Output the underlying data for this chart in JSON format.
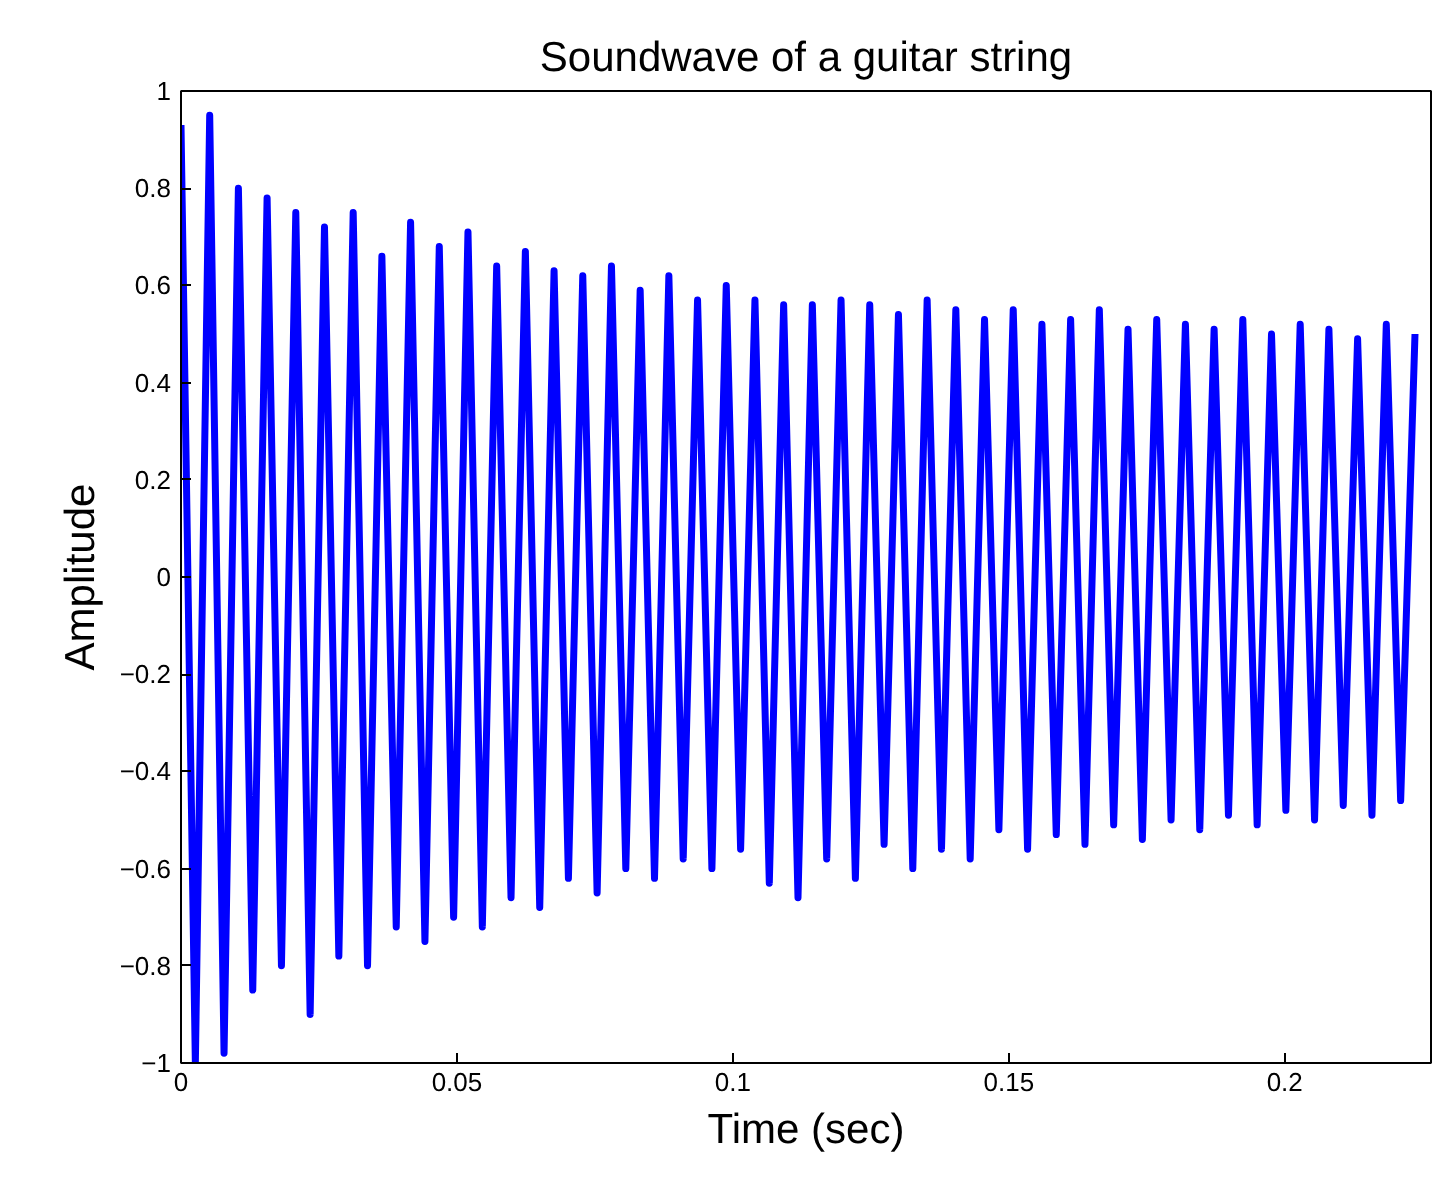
{
  "chart_data": {
    "type": "line",
    "title": "Soundwave of a guitar string",
    "xlabel": "Time (sec)",
    "ylabel": "Amplitude",
    "x": [
      0.0,
      0.0026,
      0.0052,
      0.0078,
      0.0104,
      0.013,
      0.0156,
      0.0182,
      0.0208,
      0.0234,
      0.026,
      0.0286,
      0.0312,
      0.0338,
      0.0364,
      0.039,
      0.0416,
      0.0442,
      0.0468,
      0.0494,
      0.052,
      0.0546,
      0.0572,
      0.0598,
      0.0624,
      0.065,
      0.0676,
      0.0702,
      0.0728,
      0.0754,
      0.078,
      0.0806,
      0.0832,
      0.0858,
      0.0884,
      0.091,
      0.0936,
      0.0962,
      0.0988,
      0.1014,
      0.104,
      0.1066,
      0.1092,
      0.1118,
      0.1144,
      0.117,
      0.1196,
      0.1222,
      0.1248,
      0.1274,
      0.13,
      0.1326,
      0.1352,
      0.1378,
      0.1404,
      0.143,
      0.1456,
      0.1482,
      0.1508,
      0.1534,
      0.156,
      0.1586,
      0.1612,
      0.1638,
      0.1664,
      0.169,
      0.1716,
      0.1742,
      0.1768,
      0.1794,
      0.182,
      0.1846,
      0.1872,
      0.1898,
      0.1924,
      0.195,
      0.1976,
      0.2002,
      0.2028,
      0.2054,
      0.208,
      0.2106,
      0.2132,
      0.2158,
      0.2184,
      0.221,
      0.2236
    ],
    "series": [
      {
        "color": "#0000ff",
        "values": [
          0.93,
          -1.0,
          0.95,
          -0.98,
          0.8,
          -0.85,
          0.78,
          -0.8,
          0.75,
          -0.9,
          0.72,
          -0.78,
          0.75,
          -0.8,
          0.66,
          -0.72,
          0.73,
          -0.75,
          0.68,
          -0.7,
          0.71,
          -0.72,
          0.64,
          -0.66,
          0.67,
          -0.68,
          0.63,
          -0.62,
          0.62,
          -0.65,
          0.64,
          -0.6,
          0.59,
          -0.62,
          0.62,
          -0.58,
          0.57,
          -0.6,
          0.6,
          -0.56,
          0.57,
          -0.63,
          0.56,
          -0.66,
          0.56,
          -0.58,
          0.57,
          -0.62,
          0.56,
          -0.55,
          0.54,
          -0.6,
          0.57,
          -0.56,
          0.55,
          -0.58,
          0.53,
          -0.52,
          0.55,
          -0.56,
          0.52,
          -0.53,
          0.53,
          -0.55,
          0.55,
          -0.51,
          0.51,
          -0.54,
          0.53,
          -0.5,
          0.52,
          -0.52,
          0.51,
          -0.49,
          0.53,
          -0.51,
          0.5,
          -0.48,
          0.52,
          -0.5,
          0.51,
          -0.47,
          0.49,
          -0.49,
          0.52,
          -0.46,
          0.5
        ]
      }
    ],
    "xlim": [
      0,
      0.2265
    ],
    "ylim": [
      -1,
      1
    ],
    "xticks": [
      0,
      0.05,
      0.1,
      0.15,
      0.2
    ],
    "yticks": [
      {
        "value": -1,
        "label": "−1"
      },
      {
        "value": -0.8,
        "label": "−0.8"
      },
      {
        "value": -0.6,
        "label": "−0.6"
      },
      {
        "value": -0.4,
        "label": "−0.4"
      },
      {
        "value": -0.2,
        "label": "−0.2"
      },
      0,
      0.2,
      0.4,
      0.6,
      0.8,
      1
    ],
    "grid": false,
    "marker": "none",
    "line_style": "solid"
  }
}
